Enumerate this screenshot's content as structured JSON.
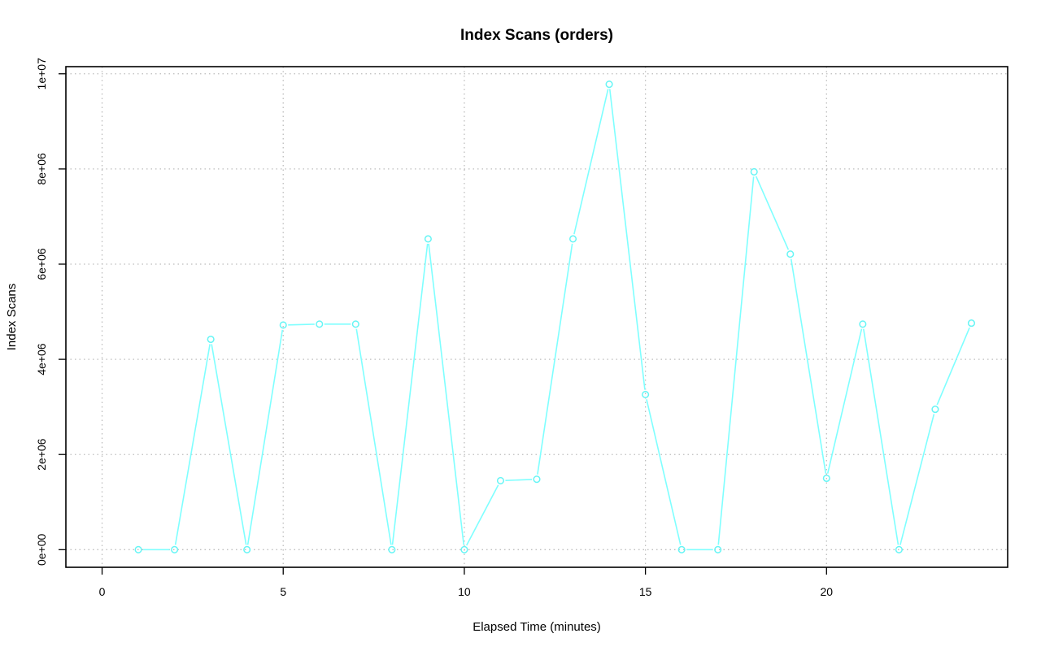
{
  "chart_data": {
    "type": "line",
    "title": "Index Scans (orders)",
    "xlabel": "Elapsed Time (minutes)",
    "ylabel": "Index Scans",
    "xlim": [
      -1,
      25
    ],
    "ylim": [
      -370000,
      10150000
    ],
    "x_ticks": [
      0,
      5,
      10,
      15,
      20
    ],
    "y_ticks": [
      0,
      2000000,
      4000000,
      6000000,
      8000000,
      10000000
    ],
    "y_tick_labels": [
      "0e+00",
      "2e+06",
      "4e+06",
      "6e+06",
      "8e+06",
      "1e+07"
    ],
    "grid": true,
    "series": [
      {
        "color": "#7fffff",
        "x": [
          1,
          2,
          3,
          4,
          5,
          6,
          7,
          8,
          9,
          10,
          11,
          12,
          13,
          14,
          15,
          16,
          17,
          18,
          19,
          20,
          21,
          22,
          23,
          24
        ],
        "values": [
          0,
          0,
          4420000,
          0,
          4720000,
          4740000,
          4740000,
          0,
          6530000,
          0,
          1450000,
          1480000,
          6530000,
          9780000,
          3260000,
          0,
          0,
          7940000,
          6210000,
          1500000,
          4740000,
          0,
          2950000,
          4760000
        ]
      }
    ]
  }
}
